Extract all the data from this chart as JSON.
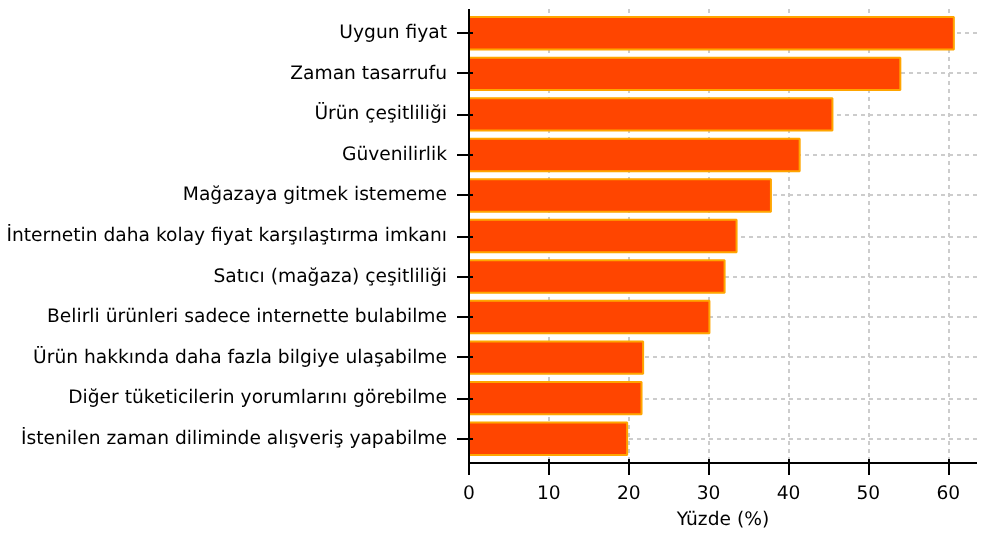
{
  "chart_data": {
    "type": "bar",
    "orientation": "horizontal",
    "xlabel": "Yüzde (%)",
    "categories": [
      "Uygun fiyat",
      "Zaman tasarrufu",
      "Ürün çeşitliliği",
      "Güvenilirlik",
      "Mağazaya gitmek istememe",
      "İnternetin daha kolay fiyat karşılaştırma imkanı",
      "Satıcı (mağaza) çeşitliliği",
      "Belirli ürünleri sadece internette bulabilme",
      "Ürün hakkında daha fazla bilgiye ulaşabilme",
      "Diğer tüketicilerin yorumlarını görebilme",
      "İstenilen zaman diliminde alışveriş yapabilme"
    ],
    "values": [
      60.7,
      54.0,
      45.5,
      41.4,
      37.8,
      33.5,
      32.0,
      30.1,
      21.8,
      21.6,
      19.8
    ],
    "color": "#ff4500",
    "xlim": [
      0,
      63.6
    ],
    "xticks": [
      0,
      10,
      20,
      30,
      40,
      50,
      60
    ],
    "grid": true
  }
}
